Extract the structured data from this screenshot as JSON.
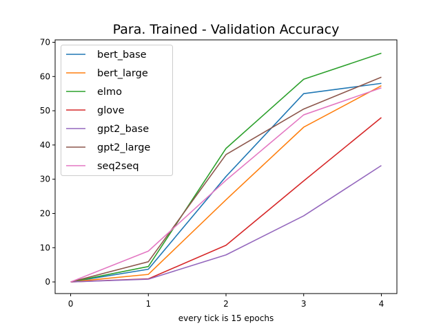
{
  "chart_data": {
    "type": "line",
    "title": "Para. Trained - Validation Accuracy",
    "xlabel": "every tick is 15 epochs",
    "ylabel": "",
    "x": [
      0,
      1,
      2,
      3,
      4
    ],
    "xticks": [
      "0",
      "1",
      "2",
      "3",
      "4"
    ],
    "yticks": [
      "0",
      "10",
      "20",
      "30",
      "40",
      "50",
      "60",
      "70"
    ],
    "xlim": [
      -0.2,
      4.2
    ],
    "ylim": [
      -3.4,
      70.7
    ],
    "grid": false,
    "legend_position": "top-left",
    "series": [
      {
        "name": "bert_base",
        "color": "#1f77b4",
        "values": [
          0.0,
          3.7,
          30.8,
          55.0,
          58.0
        ]
      },
      {
        "name": "bert_large",
        "color": "#ff7f0e",
        "values": [
          0.0,
          2.2,
          24.0,
          45.2,
          57.3
        ]
      },
      {
        "name": "elmo",
        "color": "#2ca02c",
        "values": [
          0.0,
          4.5,
          39.0,
          59.2,
          66.8
        ]
      },
      {
        "name": "glove",
        "color": "#d62728",
        "values": [
          0.0,
          0.9,
          10.7,
          29.5,
          48.0
        ]
      },
      {
        "name": "gpt2_base",
        "color": "#9467bd",
        "values": [
          0.0,
          0.8,
          7.9,
          19.3,
          34.0
        ]
      },
      {
        "name": "gpt2_large",
        "color": "#8c564b",
        "values": [
          0.0,
          5.9,
          37.2,
          50.5,
          59.8
        ]
      },
      {
        "name": "seq2seq",
        "color": "#e377c2",
        "values": [
          0.0,
          9.0,
          29.7,
          48.8,
          56.7
        ]
      }
    ]
  }
}
